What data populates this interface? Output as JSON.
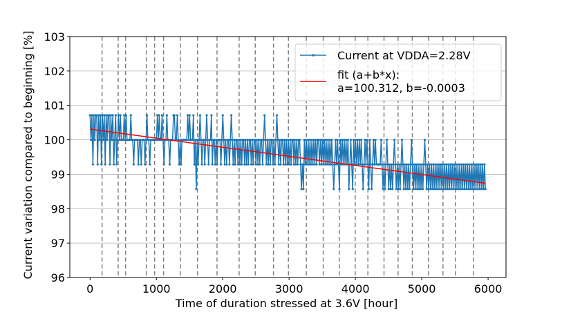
{
  "chart_data": {
    "type": "line",
    "title": "",
    "xlabel": "Time of duration stressed at 3.6V [hour]",
    "ylabel": "Current variation compared to beginning [%]",
    "xlim": [
      -305,
      6270
    ],
    "ylim": [
      96,
      103
    ],
    "x_ticks": [
      0,
      1000,
      2000,
      3000,
      4000,
      5000,
      6000
    ],
    "x_tick_labels": [
      "0",
      "1000",
      "2000",
      "3000",
      "4000",
      "5000",
      "6000"
    ],
    "y_ticks": [
      96,
      97,
      98,
      99,
      100,
      101,
      102,
      103
    ],
    "y_tick_labels": [
      "96",
      "97",
      "98",
      "99",
      "100",
      "101",
      "102",
      "103"
    ],
    "grid": "horizontal",
    "legend_position": "top-right",
    "event_lines_x": [
      181,
      424,
      535,
      848,
      973,
      1108,
      1361,
      1619,
      1914,
      2247,
      2490,
      2765,
      2990,
      3260,
      3515,
      3757,
      3997,
      4188,
      4431,
      4643,
      4858,
      5101,
      5320,
      5507,
      5778
    ],
    "levels": [
      98.571,
      99.286,
      100.0,
      100.714
    ],
    "series": [
      {
        "name": "Current at VDDA=2.28V",
        "color": "#1f77b4",
        "marker": "dot",
        "x_start": 0,
        "x_step": 15,
        "level_index": [
          3,
          2,
          3,
          1,
          3,
          2,
          3,
          3,
          1,
          3,
          2,
          3,
          1,
          3,
          2,
          3,
          1,
          3,
          2,
          3,
          3,
          1,
          3,
          2,
          3,
          1,
          2,
          3,
          1,
          2,
          3,
          2,
          3,
          2,
          2,
          2,
          3,
          2,
          3,
          2,
          2,
          2,
          2,
          3,
          2,
          2,
          1,
          2,
          2,
          2,
          2,
          1,
          2,
          2,
          1,
          2,
          2,
          2,
          1,
          2,
          3,
          2,
          2,
          1,
          2,
          2,
          2,
          2,
          2,
          2,
          2,
          3,
          2,
          3,
          2,
          2,
          3,
          2,
          1,
          2,
          2,
          3,
          2,
          2,
          1,
          2,
          2,
          2,
          3,
          3,
          2,
          2,
          3,
          2,
          1,
          2,
          1,
          2,
          2,
          2,
          2,
          2,
          2,
          3,
          2,
          3,
          2,
          2,
          2,
          3,
          1,
          2,
          0,
          2,
          1,
          2,
          3,
          2,
          1,
          2,
          2,
          1,
          2,
          3,
          2,
          1,
          2,
          2,
          3,
          1,
          2,
          2,
          1,
          2,
          1,
          2,
          2,
          2,
          1,
          2,
          3,
          2,
          1,
          2,
          1,
          2,
          2,
          1,
          2,
          3,
          2,
          1,
          2,
          1,
          2,
          2,
          1,
          2,
          1,
          2,
          1,
          2,
          2,
          1,
          2,
          1,
          2,
          1,
          2,
          2,
          1,
          2,
          1,
          2,
          2,
          1,
          2,
          1,
          2,
          1,
          2,
          2,
          1,
          2,
          3,
          2,
          1,
          2,
          1,
          2,
          1,
          2,
          2,
          1,
          2,
          1,
          2,
          3,
          2,
          1,
          2,
          1,
          2,
          2,
          1,
          2,
          1,
          2,
          1,
          2,
          1,
          2,
          1,
          2,
          2,
          1,
          2,
          1,
          2,
          1,
          2,
          2,
          1,
          0,
          1,
          0,
          2,
          1,
          2,
          1,
          2,
          1,
          2,
          1,
          2,
          1,
          2,
          1,
          2,
          1,
          2,
          2,
          1,
          2,
          1,
          2,
          1,
          2,
          1,
          2,
          1,
          2,
          1,
          2,
          1,
          2,
          1,
          0,
          1,
          2,
          1,
          2,
          1,
          0,
          2,
          1,
          2,
          1,
          2,
          1,
          2,
          1,
          2,
          0,
          1,
          2,
          1,
          0,
          2,
          1,
          2,
          1,
          2,
          1,
          2,
          1,
          2,
          1,
          0,
          1,
          2,
          1,
          2,
          1,
          0,
          2,
          1,
          0,
          1,
          2,
          1,
          2,
          1,
          1,
          1,
          1,
          1,
          2,
          1,
          0,
          1,
          0,
          1,
          2,
          1,
          0,
          1,
          0,
          1,
          0,
          1,
          2,
          1,
          0,
          1,
          0,
          1,
          0,
          1,
          2,
          1,
          0,
          1,
          0,
          1,
          0,
          1,
          0,
          1,
          2,
          1,
          0,
          1,
          0,
          1,
          0,
          1,
          0,
          1,
          0,
          1,
          0,
          1,
          2,
          1,
          0,
          1,
          0,
          1,
          0,
          1,
          0,
          1,
          0,
          1,
          0,
          1,
          0,
          1,
          0,
          1,
          0,
          1,
          0,
          1,
          0,
          1,
          0,
          1,
          0,
          1,
          0,
          1,
          0,
          1,
          0,
          1,
          0,
          1,
          0,
          1,
          0,
          1,
          0,
          1,
          0,
          1,
          0,
          1,
          0,
          1,
          0,
          1,
          0,
          1,
          0,
          1,
          0,
          1,
          0,
          1,
          0,
          1,
          0,
          1,
          0,
          1,
          0
        ]
      },
      {
        "name": "fit (a+b*x):",
        "name_line2": "a=100.312, b=-0.0003",
        "color": "#ff0000",
        "a": 100.312,
        "b": -0.000264,
        "x_range": [
          0,
          5960
        ]
      }
    ]
  }
}
